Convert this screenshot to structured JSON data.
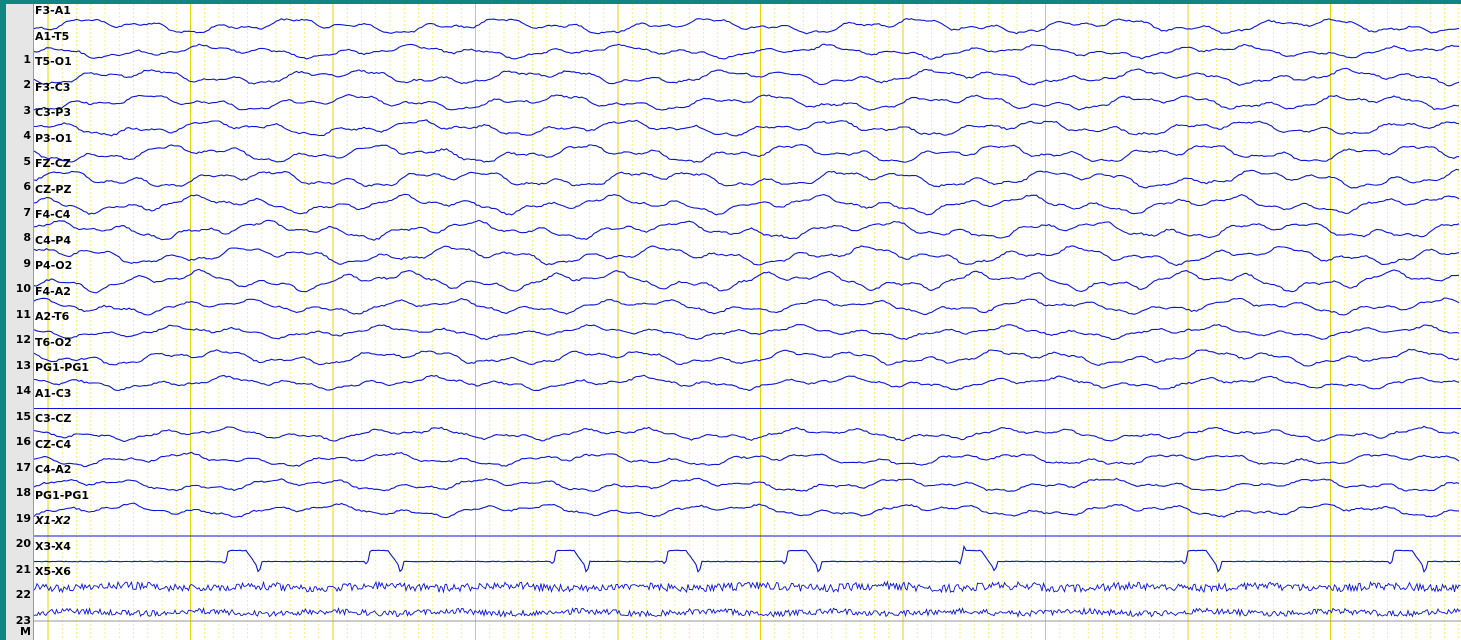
{
  "channels": [
    {
      "num": "",
      "label": "F3-A1",
      "amp": 6,
      "type": "eeg"
    },
    {
      "num": "1",
      "label": "A1-T5",
      "amp": 5,
      "type": "eeg"
    },
    {
      "num": "2",
      "label": "T5-O1",
      "amp": 6,
      "type": "eeg"
    },
    {
      "num": "3",
      "label": "F3-C3",
      "amp": 6,
      "type": "eeg"
    },
    {
      "num": "4",
      "label": "C3-P3",
      "amp": 6,
      "type": "eeg"
    },
    {
      "num": "5",
      "label": "P3-O1",
      "amp": 7,
      "type": "eeg"
    },
    {
      "num": "6",
      "label": "FZ-CZ",
      "amp": 7,
      "type": "eeg"
    },
    {
      "num": "7",
      "label": "CZ-PZ",
      "amp": 7,
      "type": "eeg"
    },
    {
      "num": "8",
      "label": "F4-C4",
      "amp": 7,
      "type": "eeg"
    },
    {
      "num": "9",
      "label": "C4-P4",
      "amp": 7,
      "type": "eeg"
    },
    {
      "num": "10",
      "label": "P4-O2",
      "amp": 8,
      "type": "eeg"
    },
    {
      "num": "11",
      "label": "F4-A2",
      "amp": 6,
      "type": "eeg"
    },
    {
      "num": "12",
      "label": "A2-T6",
      "amp": 5,
      "type": "eeg"
    },
    {
      "num": "13",
      "label": "T6-O2",
      "amp": 6,
      "type": "eeg"
    },
    {
      "num": "14",
      "label": "PG1-PG1",
      "amp": 5,
      "type": "eeg"
    },
    {
      "num": "15",
      "label": "A1-C3",
      "amp": 0,
      "type": "flat"
    },
    {
      "num": "16",
      "label": "C3-CZ",
      "amp": 5,
      "type": "eeg"
    },
    {
      "num": "17",
      "label": "CZ-C4",
      "amp": 5,
      "type": "eeg"
    },
    {
      "num": "18",
      "label": "C4-A2",
      "amp": 5,
      "type": "eeg"
    },
    {
      "num": "19",
      "label": "PG1-PG1",
      "amp": 5,
      "type": "eeg"
    },
    {
      "num": "20",
      "label": "X1-X2",
      "amp": 0,
      "type": "flat",
      "italic": true
    },
    {
      "num": "21",
      "label": "X3-X4",
      "amp": 20,
      "type": "ecg"
    },
    {
      "num": "22",
      "label": "X5-X6",
      "amp": 4,
      "type": "emg"
    },
    {
      "num": "23",
      "label": "",
      "amp": 3,
      "type": "emg"
    }
  ],
  "marker_label": "M",
  "ecg_beats_x": [
    220,
    362,
    548,
    660,
    780,
    955,
    1180,
    1386
  ],
  "colors": {
    "trace": "#0b16d6",
    "grid": "#f3ef6a",
    "second_line": "#e8d400",
    "background": "#11857f"
  }
}
